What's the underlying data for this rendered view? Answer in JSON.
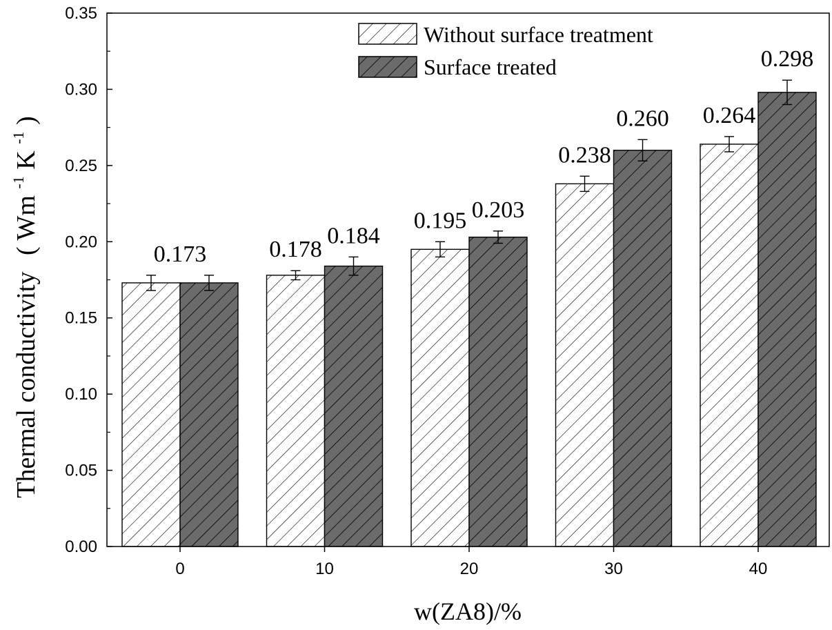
{
  "chart_data": {
    "type": "bar",
    "title": "",
    "xlabel": "w(ZA8)/%",
    "ylabel_main": "Thermal conductivity",
    "ylabel_unit": {
      "open": "(",
      "base1": "Wm",
      "sup1": "-1",
      "base2": "K",
      "sup2": "-1",
      "close": ")"
    },
    "categories": [
      "0",
      "10",
      "20",
      "30",
      "40"
    ],
    "ylim": [
      0,
      0.35
    ],
    "yticks": [
      0.0,
      0.05,
      0.1,
      0.15,
      0.2,
      0.25,
      0.3,
      0.35
    ],
    "ytick_labels": [
      "0.00",
      "0.05",
      "0.10",
      "0.15",
      "0.20",
      "0.25",
      "0.30",
      "0.35"
    ],
    "series": [
      {
        "name": "Without surface treatment",
        "values": [
          0.173,
          0.178,
          0.195,
          0.238,
          0.264
        ],
        "errors": [
          0.005,
          0.003,
          0.005,
          0.005,
          0.005
        ],
        "fill": "#ffffff",
        "hatch": "#000000"
      },
      {
        "name": "Surface treated",
        "values": [
          0.173,
          0.184,
          0.203,
          0.26,
          0.298
        ],
        "errors": [
          0.005,
          0.006,
          0.004,
          0.007,
          0.008
        ],
        "fill": "#6b6b6b",
        "hatch": "#000000"
      }
    ],
    "data_labels": [
      {
        "text": "0.173",
        "category": 0
      },
      {
        "text": "0.178",
        "category": 1,
        "series": 0
      },
      {
        "text": "0.184",
        "category": 1,
        "series": 1
      },
      {
        "text": "0.195",
        "category": 2,
        "series": 0
      },
      {
        "text": "0.203",
        "category": 2,
        "series": 1
      },
      {
        "text": "0.238",
        "category": 3,
        "series": 0
      },
      {
        "text": "0.260",
        "category": 3,
        "series": 1
      },
      {
        "text": "0.264",
        "category": 4,
        "series": 0
      },
      {
        "text": "0.298",
        "category": 4,
        "series": 1
      }
    ],
    "legend_position": "top-right",
    "grid": false
  }
}
